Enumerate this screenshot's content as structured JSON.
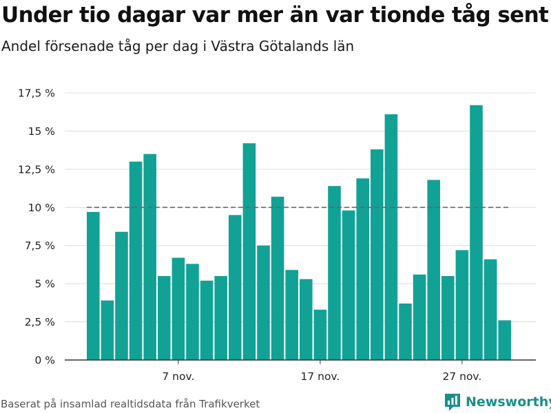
{
  "title": "Under tio dagar var mer än var tionde tåg sent",
  "subtitle": "Andel försenade tåg per dag i Västra Götalands län",
  "source": "Baserat på insamlad realtidsdata från Trafikverket",
  "brand": {
    "name": "Newsworthy",
    "icon": "bar-chart-logo-icon",
    "color": "#1a8f8a"
  },
  "colors": {
    "bar": "#11a195",
    "reference_line": "#666666",
    "grid": "#dcdcdc",
    "axis": "#333333"
  },
  "chart_data": {
    "type": "bar",
    "y_unit": "%",
    "ylim": [
      0,
      17.5
    ],
    "y_ticks": [
      0,
      2.5,
      5,
      7.5,
      10,
      12.5,
      15,
      17.5
    ],
    "y_tick_labels": [
      "0 %",
      "2,5 %",
      "5 %",
      "7,5 %",
      "10 %",
      "12,5 %",
      "15 %",
      "17,5 %"
    ],
    "x_tick_labels": [
      {
        "label": "7 nov.",
        "index": 6
      },
      {
        "label": "17 nov.",
        "index": 16
      },
      {
        "label": "27 nov.",
        "index": 26
      }
    ],
    "reference_line": 10,
    "grid": true,
    "values": [
      9.7,
      3.9,
      8.4,
      13.0,
      13.5,
      5.5,
      6.7,
      6.3,
      5.2,
      5.5,
      9.5,
      14.2,
      7.5,
      10.7,
      5.9,
      5.3,
      3.3,
      11.4,
      9.8,
      11.9,
      13.8,
      16.1,
      3.7,
      5.6,
      11.8,
      5.5,
      7.2,
      16.7,
      6.6,
      2.6
    ]
  }
}
